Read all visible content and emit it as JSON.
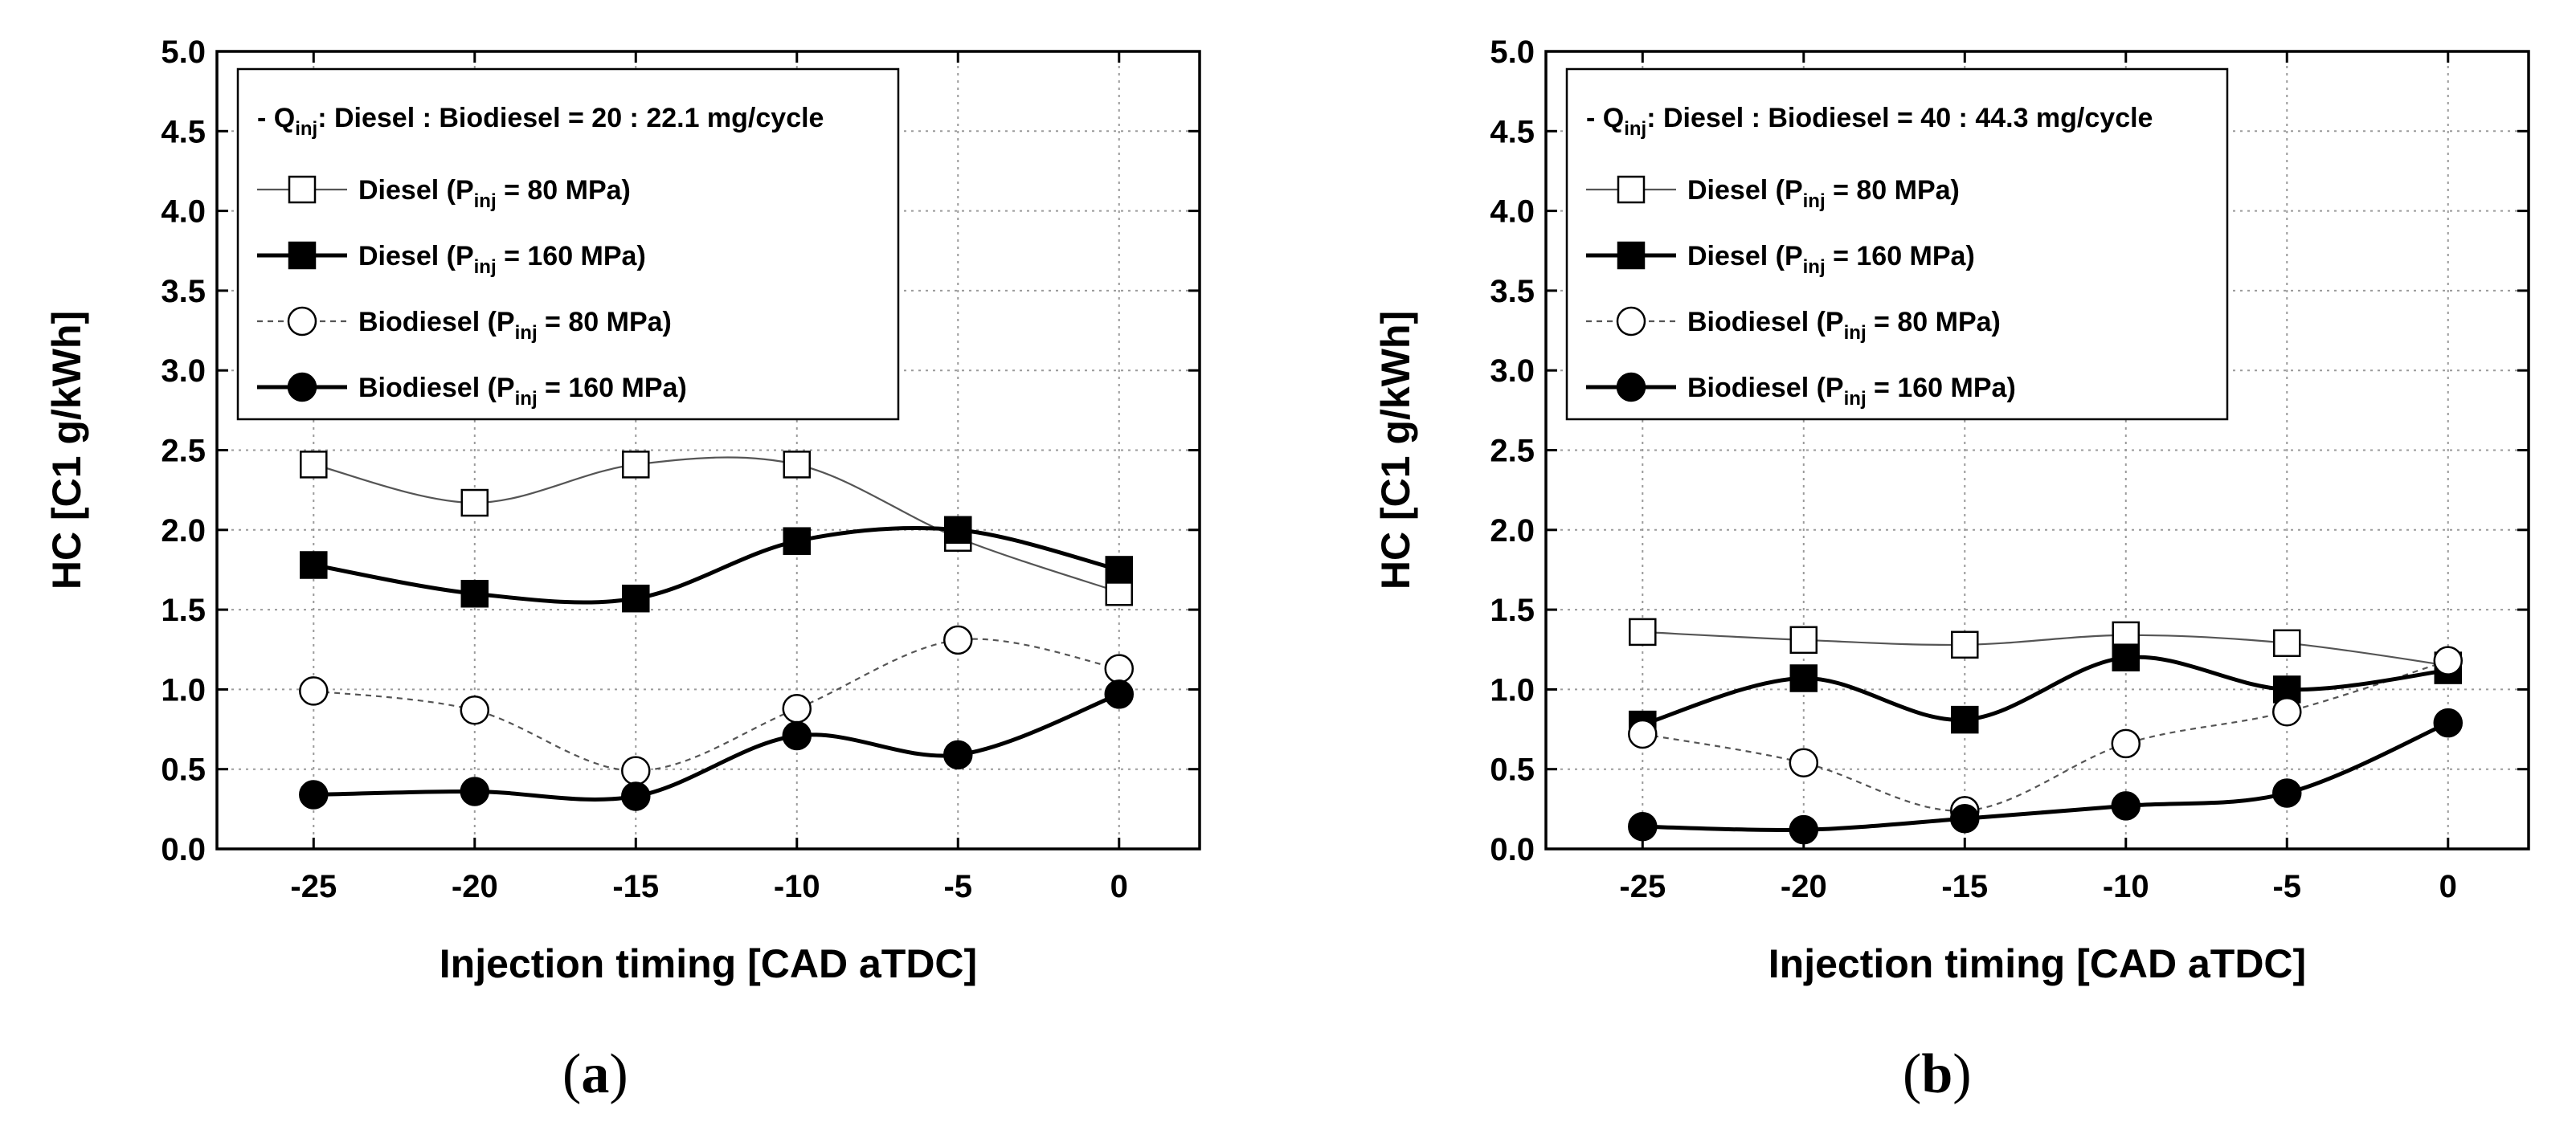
{
  "chart_data": [
    {
      "type": "line",
      "panel_label": "a",
      "xlabel": "Injection timing [CAD aTDC]",
      "ylabel": "HC [C1 g/kWh]",
      "xlim": [
        -28,
        2.5
      ],
      "ylim": [
        0,
        5.0
      ],
      "xticks": [
        "-25",
        "-20",
        "-15",
        "-10",
        "-5",
        "0"
      ],
      "yticks": [
        "0.0",
        "0.5",
        "1.0",
        "1.5",
        "2.0",
        "2.5",
        "3.0",
        "3.5",
        "4.0",
        "4.5",
        "5.0"
      ],
      "grid": true,
      "legend_position": "top-left",
      "legend_note": {
        "prefix": "- Q",
        "sub": "inj",
        "suffix": ": Diesel : Biodiesel = 20 : 22.1 mg/cycle"
      },
      "x": [
        -25,
        -20,
        -15,
        -10,
        -5,
        0
      ],
      "series": [
        {
          "name": "Diesel (Pinj = 80 MPa)",
          "label_prefix": "Diesel (P",
          "label_sub": "inj",
          "label_suffix": " = 80 MPa)",
          "marker": "square-open",
          "line": "thin-solid",
          "values": [
            2.41,
            2.17,
            2.41,
            2.41,
            1.95,
            1.61
          ]
        },
        {
          "name": "Diesel (Pinj = 160 MPa)",
          "label_prefix": "Diesel (P",
          "label_sub": "inj",
          "label_suffix": " = 160 MPa)",
          "marker": "square-filled",
          "line": "thick-solid",
          "values": [
            1.78,
            1.6,
            1.57,
            1.93,
            2.0,
            1.75
          ]
        },
        {
          "name": "Biodiesel (Pinj = 80 MPa)",
          "label_prefix": "Biodiesel (P",
          "label_sub": "inj",
          "label_suffix": " = 80 MPa)",
          "marker": "circle-open",
          "line": "thin-dashed",
          "values": [
            0.99,
            0.87,
            0.49,
            0.88,
            1.31,
            1.13
          ]
        },
        {
          "name": "Biodiesel (Pinj = 160 MPa)",
          "label_prefix": "Biodiesel (P",
          "label_sub": "inj",
          "label_suffix": " = 160 MPa)",
          "marker": "circle-filled",
          "line": "thick-solid",
          "values": [
            0.34,
            0.36,
            0.33,
            0.71,
            0.59,
            0.97
          ]
        }
      ]
    },
    {
      "type": "line",
      "panel_label": "b",
      "xlabel": "Injection timing [CAD aTDC]",
      "ylabel": "HC [C1 g/kWh]",
      "xlim": [
        -28,
        2.5
      ],
      "ylim": [
        0,
        5.0
      ],
      "xticks": [
        "-25",
        "-20",
        "-15",
        "-10",
        "-5",
        "0"
      ],
      "yticks": [
        "0.0",
        "0.5",
        "1.0",
        "1.5",
        "2.0",
        "2.5",
        "3.0",
        "3.5",
        "4.0",
        "4.5",
        "5.0"
      ],
      "grid": true,
      "legend_position": "top-left",
      "legend_note": {
        "prefix": "- Q",
        "sub": "inj",
        "suffix": ": Diesel : Biodiesel = 40 : 44.3 mg/cycle"
      },
      "x": [
        -25,
        -20,
        -15,
        -10,
        -5,
        0
      ],
      "series": [
        {
          "name": "Diesel (Pinj = 80 MPa)",
          "label_prefix": "Diesel (P",
          "label_sub": "inj",
          "label_suffix": " = 80 MPa)",
          "marker": "square-open",
          "line": "thin-solid",
          "values": [
            1.36,
            1.31,
            1.28,
            1.34,
            1.29,
            1.15
          ]
        },
        {
          "name": "Diesel (Pinj = 160 MPa)",
          "label_prefix": "Diesel (P",
          "label_sub": "inj",
          "label_suffix": " = 160 MPa)",
          "marker": "square-filled",
          "line": "thick-solid",
          "values": [
            0.78,
            1.07,
            0.81,
            1.2,
            1.0,
            1.12
          ]
        },
        {
          "name": "Biodiesel (Pinj = 80 MPa)",
          "label_prefix": "Biodiesel (P",
          "label_sub": "inj",
          "label_suffix": " = 80 MPa)",
          "marker": "circle-open",
          "line": "thin-dashed",
          "values": [
            0.72,
            0.54,
            0.24,
            0.66,
            0.86,
            1.18
          ]
        },
        {
          "name": "Biodiesel (Pinj = 160 MPa)",
          "label_prefix": "Biodiesel (P",
          "label_sub": "inj",
          "label_suffix": " = 160 MPa)",
          "marker": "circle-filled",
          "line": "thick-solid",
          "values": [
            0.14,
            0.12,
            0.19,
            0.27,
            0.35,
            0.79
          ]
        }
      ]
    }
  ]
}
